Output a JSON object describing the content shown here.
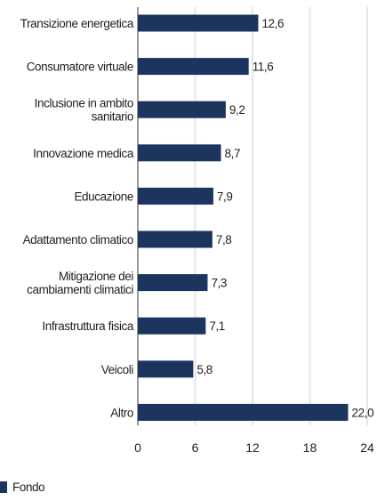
{
  "chart_data": {
    "type": "bar",
    "orientation": "horizontal",
    "categories": [
      [
        "Transizione energetica"
      ],
      [
        "Consumatore virtuale"
      ],
      [
        "Inclusione in ambito",
        "sanitario"
      ],
      [
        "Innovazione medica"
      ],
      [
        "Educazione"
      ],
      [
        "Adattamento climatico"
      ],
      [
        "Mitigazione dei",
        "cambiamenti climatici"
      ],
      [
        "Infrastruttura fisica"
      ],
      [
        "Veicoli"
      ],
      [
        "Altro"
      ]
    ],
    "series": [
      {
        "name": "Fondo",
        "values": [
          12.6,
          11.6,
          9.2,
          8.7,
          7.9,
          7.8,
          7.3,
          7.1,
          5.8,
          22.0
        ],
        "value_labels": [
          "12,6",
          "11,6",
          "9,2",
          "8,7",
          "7,9",
          "7,8",
          "7,3",
          "7,1",
          "5,8",
          "22,0"
        ]
      }
    ],
    "xlim": [
      0,
      24
    ],
    "xticks": [
      0,
      6,
      12,
      18,
      24
    ],
    "xtick_labels": [
      "0",
      "6",
      "12",
      "18",
      "24"
    ],
    "grid": "vertical",
    "legend_position": "bottom-left",
    "colors": {
      "bar": "#1c355e",
      "grid": "#e6e6e6",
      "text": "#1f1f1f"
    }
  },
  "legend": {
    "label": "Fondo"
  }
}
